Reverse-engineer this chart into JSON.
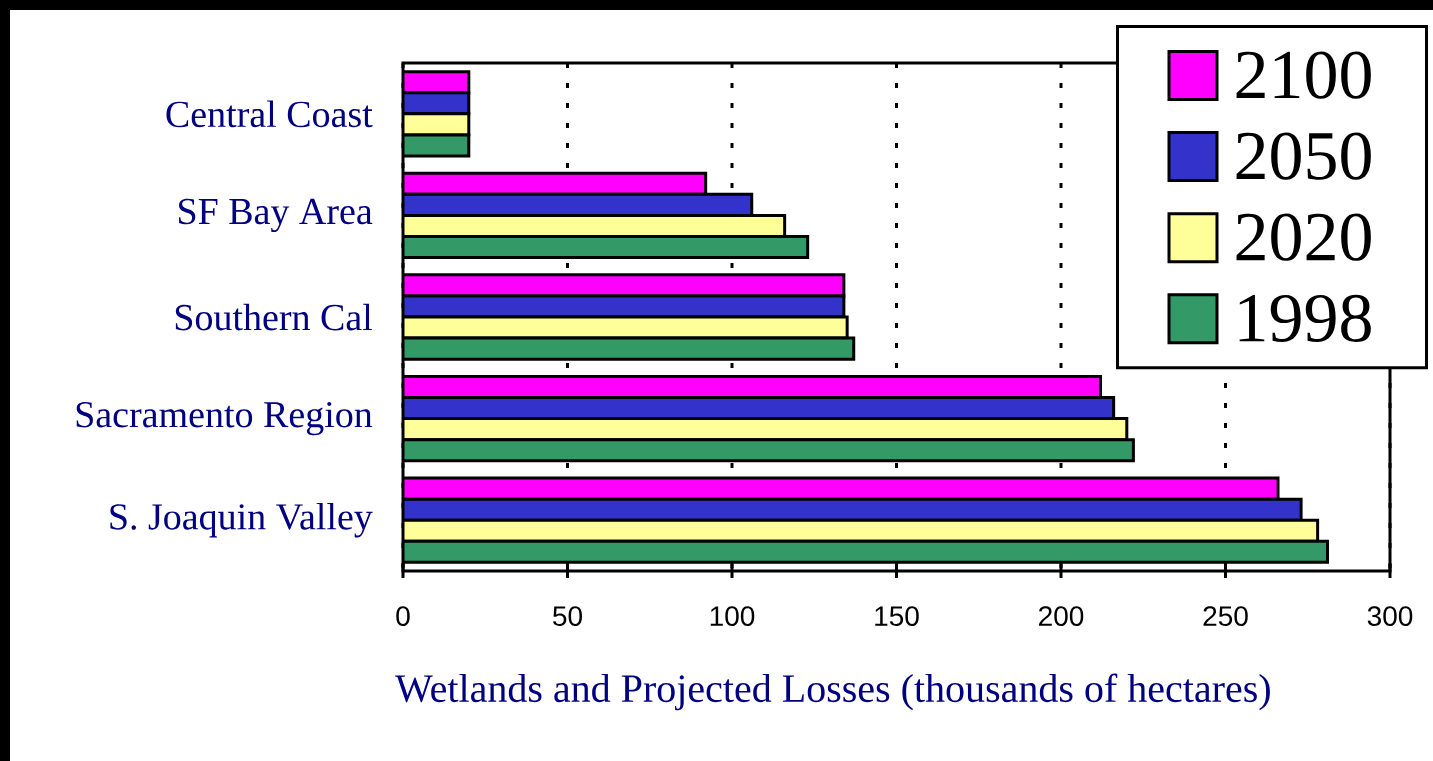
{
  "chart_data": {
    "type": "bar",
    "orientation": "horizontal",
    "xlabel": "Wetlands and Projected Losses (thousands of hectares)",
    "categories": [
      "Central Coast",
      "SF Bay Area",
      "Southern Cal",
      "Sacramento Region",
      "S. Joaquin Valley"
    ],
    "series": [
      {
        "name": "2100",
        "color": "#ff00ff",
        "values": [
          20,
          92,
          134,
          212,
          266
        ]
      },
      {
        "name": "2050",
        "color": "#3333cc",
        "values": [
          20,
          106,
          134,
          216,
          273
        ]
      },
      {
        "name": "2020",
        "color": "#ffff99",
        "values": [
          20,
          116,
          135,
          220,
          278
        ]
      },
      {
        "name": "1998",
        "color": "#339966",
        "values": [
          20,
          123,
          137,
          222,
          281
        ]
      }
    ],
    "xlim": [
      0,
      300
    ],
    "xticks": [
      0,
      50,
      100,
      150,
      200,
      250,
      300
    ],
    "grid": "x",
    "legend": "top right"
  }
}
